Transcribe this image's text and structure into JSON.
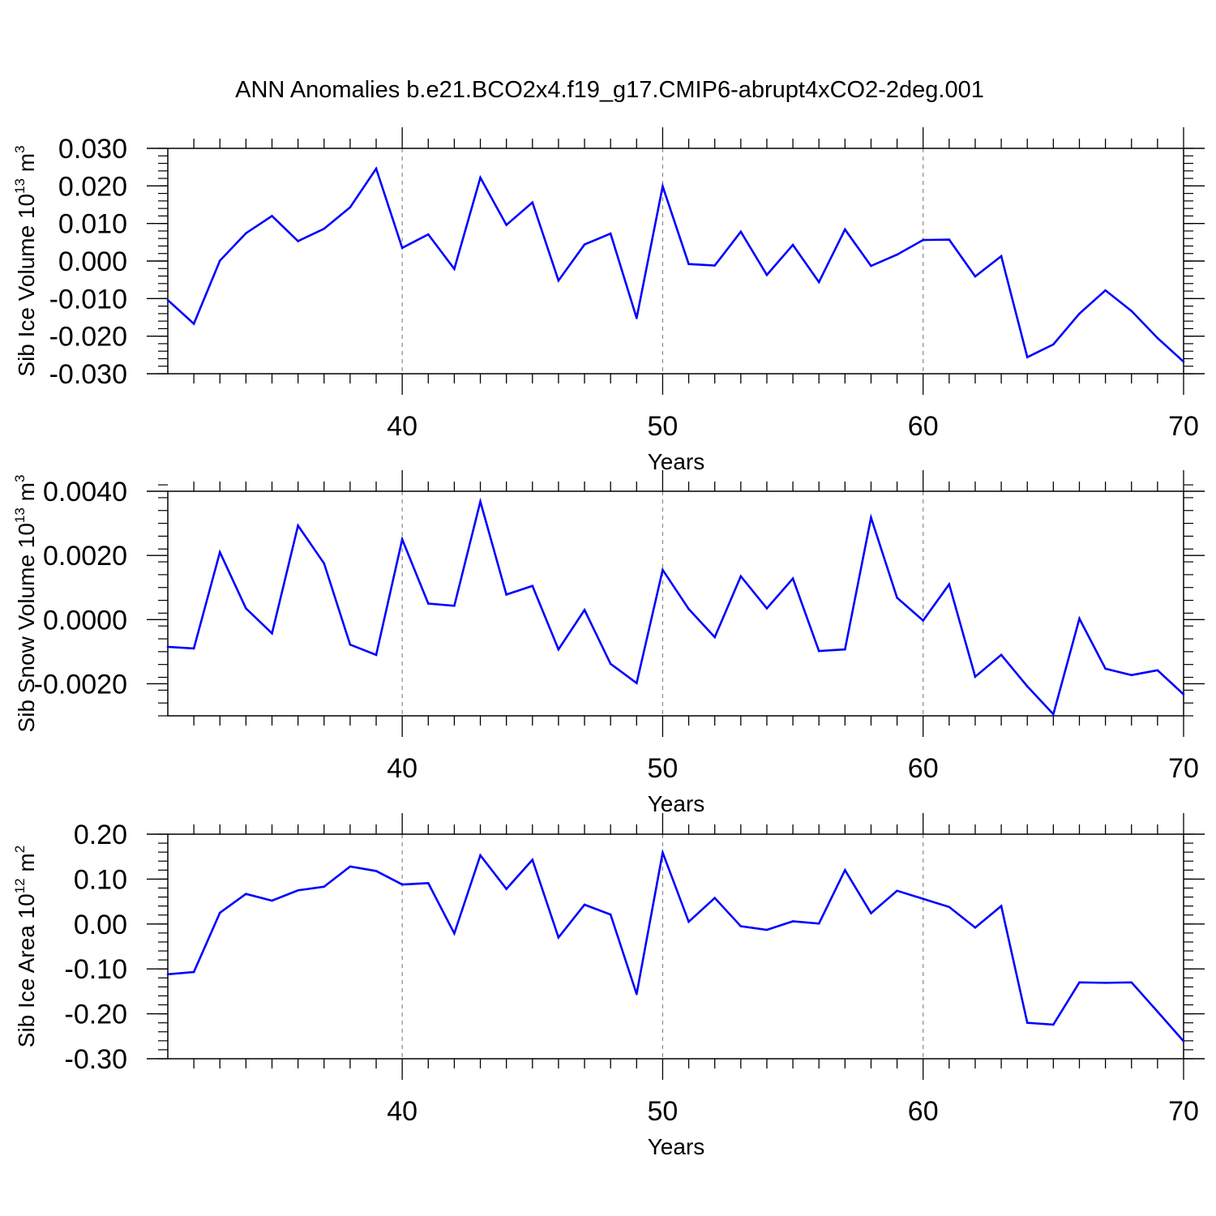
{
  "figure_title": "ANN Anomalies b.e21.BCO2x4.f19_g17.CMIP6-abrupt4xCO2-2deg.001",
  "series_color": "#0000ff",
  "chart_data": [
    {
      "type": "line",
      "title": "ANN Anomalies b.e21.BCO2x4.f19_g17.CMIP6-abrupt4xCO2-2deg.001",
      "xlabel": "Years",
      "ylabel": {
        "pre": "Sib Ice Volume 10",
        "exp": "13",
        "post": " m",
        "unit_exp": "3"
      },
      "xlim": [
        31,
        70
      ],
      "ylim": [
        -0.03,
        0.03
      ],
      "xticks": [
        "40",
        "50",
        "60",
        "70"
      ],
      "yticks": [
        "-0.030",
        "-0.020",
        "-0.010",
        "0.000",
        "0.010",
        "0.020",
        "0.030"
      ],
      "x": [
        31,
        32,
        33,
        34,
        35,
        36,
        37,
        38,
        39,
        40,
        41,
        42,
        43,
        44,
        45,
        46,
        47,
        48,
        49,
        50,
        51,
        52,
        53,
        54,
        55,
        56,
        57,
        58,
        59,
        60,
        61,
        62,
        63,
        64,
        65,
        66,
        67,
        68,
        69,
        70
      ],
      "values": [
        -0.0104,
        -0.0167,
        0.0001,
        0.0074,
        0.012,
        0.0053,
        0.0086,
        0.0143,
        0.0246,
        0.0035,
        0.0071,
        -0.0021,
        0.0222,
        0.0096,
        0.0156,
        -0.0052,
        0.0044,
        0.0073,
        -0.0152,
        0.0199,
        -0.0008,
        -0.0012,
        0.0078,
        -0.0037,
        0.0043,
        -0.0056,
        0.0084,
        -0.0013,
        0.0017,
        0.0056,
        0.0057,
        -0.0041,
        0.0013,
        -0.0256,
        -0.0222,
        -0.014,
        -0.0078,
        -0.0133,
        -0.0205,
        -0.0268
      ]
    },
    {
      "type": "line",
      "xlabel": "Years",
      "ylabel": {
        "pre": "Sib Snow Volume 10",
        "exp": "13",
        "post": " m",
        "unit_exp": "3"
      },
      "xlim": [
        31,
        70
      ],
      "ylim": [
        -0.003,
        0.004
      ],
      "xticks": [
        "40",
        "50",
        "60",
        "70"
      ],
      "yticks": [
        "-0.0020",
        "0.0000",
        "0.0020",
        "0.0040"
      ],
      "x": [
        31,
        32,
        33,
        34,
        35,
        36,
        37,
        38,
        39,
        40,
        41,
        42,
        43,
        44,
        45,
        46,
        47,
        48,
        49,
        50,
        51,
        52,
        53,
        54,
        55,
        56,
        57,
        58,
        59,
        60,
        61,
        62,
        63,
        64,
        65,
        66,
        67,
        68,
        69,
        70
      ],
      "values": [
        -0.00085,
        -0.0009,
        0.0021,
        0.00035,
        -0.00043,
        0.00293,
        0.00175,
        -0.00078,
        -0.0011,
        0.0025,
        0.0005,
        0.00043,
        0.00368,
        0.00078,
        0.00105,
        -0.00093,
        0.0003,
        -0.00138,
        -0.00198,
        0.00155,
        0.00033,
        -0.00055,
        0.00135,
        0.00035,
        0.00128,
        -0.00098,
        -0.00093,
        0.00318,
        0.00068,
        -3e-05,
        0.0011,
        -0.00178,
        -0.0011,
        -0.00208,
        -0.00295,
        3e-05,
        -0.00153,
        -0.00173,
        -0.00158,
        -0.00233
      ]
    },
    {
      "type": "line",
      "xlabel": "Years",
      "ylabel": {
        "pre": "Sib Ice Area 10",
        "exp": "12",
        "post": " m",
        "unit_exp": "2"
      },
      "xlim": [
        31,
        70
      ],
      "ylim": [
        -0.3,
        0.2
      ],
      "xticks": [
        "40",
        "50",
        "60",
        "70"
      ],
      "yticks": [
        "-0.30",
        "-0.20",
        "-0.10",
        "0.00",
        "0.10",
        "0.20"
      ],
      "x": [
        31,
        32,
        33,
        34,
        35,
        36,
        37,
        38,
        39,
        40,
        41,
        42,
        43,
        44,
        45,
        46,
        47,
        48,
        49,
        50,
        51,
        52,
        53,
        54,
        55,
        56,
        57,
        58,
        59,
        60,
        61,
        62,
        63,
        64,
        65,
        66,
        67,
        68,
        69,
        70
      ],
      "values": [
        -0.112,
        -0.107,
        0.025,
        0.067,
        0.052,
        0.075,
        0.083,
        0.128,
        0.118,
        0.088,
        0.091,
        -0.021,
        0.153,
        0.078,
        0.143,
        -0.03,
        0.043,
        0.021,
        -0.156,
        0.159,
        0.005,
        0.058,
        -0.005,
        -0.013,
        0.006,
        0.001,
        0.12,
        0.024,
        0.074,
        0.056,
        0.038,
        -0.008,
        0.04,
        -0.22,
        -0.224,
        -0.13,
        -0.131,
        -0.13,
        -0.195,
        -0.261
      ]
    }
  ]
}
